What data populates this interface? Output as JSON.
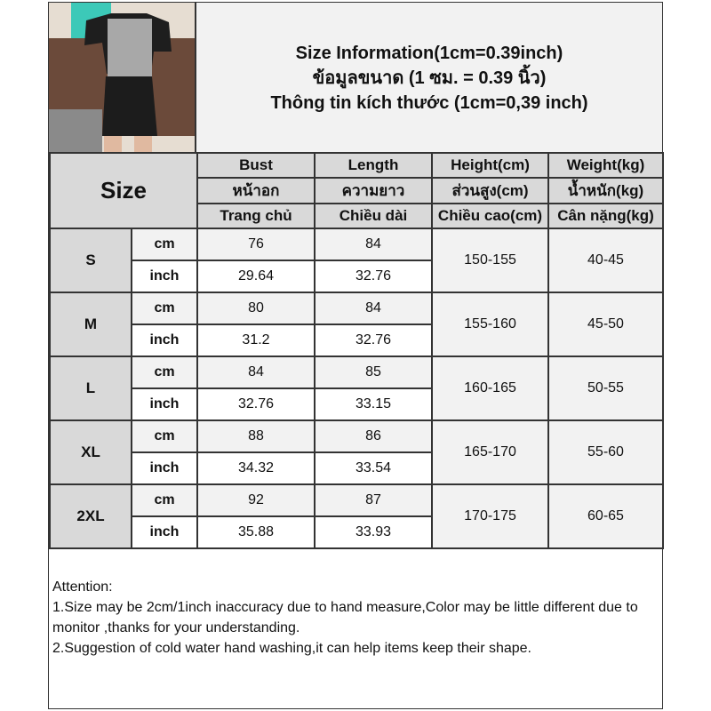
{
  "title": {
    "line1": "Size Information(1cm=0.39inch)",
    "line2": "ข้อมูลขนาด (1 ซม. = 0.39 นิ้ว)",
    "line3": "Thông tin kích thước (1cm=0,39 inch)"
  },
  "header": {
    "size": "Size",
    "en": [
      "Bust",
      "Length",
      "Height(cm)",
      "Weight(kg)"
    ],
    "th": [
      "หน้าอก",
      "ความยาว",
      "ส่วนสูง(cm)",
      "น้ำหนัก(kg)"
    ],
    "vi": [
      "Trang chủ",
      "Chiều dài",
      "Chiều cao(cm)",
      "Cân nặng(kg)"
    ]
  },
  "rows": [
    {
      "size": "S",
      "cm": "cm",
      "inch": "inch",
      "bust_cm": "76",
      "len_cm": "84",
      "bust_in": "29.64",
      "len_in": "32.76",
      "height": "150-155",
      "weight": "40-45"
    },
    {
      "size": "M",
      "cm": "cm",
      "inch": "inch",
      "bust_cm": "80",
      "len_cm": "84",
      "bust_in": "31.2",
      "len_in": "32.76",
      "height": "155-160",
      "weight": "45-50"
    },
    {
      "size": "L",
      "cm": "cm",
      "inch": "inch",
      "bust_cm": "84",
      "len_cm": "85",
      "bust_in": "32.76",
      "len_in": "33.15",
      "height": "160-165",
      "weight": "50-55"
    },
    {
      "size": "XL",
      "cm": "cm",
      "inch": "inch",
      "bust_cm": "88",
      "len_cm": "86",
      "bust_in": "34.32",
      "len_in": "33.54",
      "height": "165-170",
      "weight": "55-60"
    },
    {
      "size": "2XL",
      "cm": "cm",
      "inch": "inch",
      "bust_cm": "92",
      "len_cm": "87",
      "bust_in": "35.88",
      "len_in": "33.93",
      "height": "170-175",
      "weight": "60-65"
    }
  ],
  "attention": {
    "heading": "Attention:",
    "note1": "1.Size may be 2cm/1inch inaccuracy due to hand measure,Color may be little different due to monitor ,thanks for your understanding.",
    "note2": "2.Suggestion of cold water hand washing,it can help items keep their shape."
  }
}
